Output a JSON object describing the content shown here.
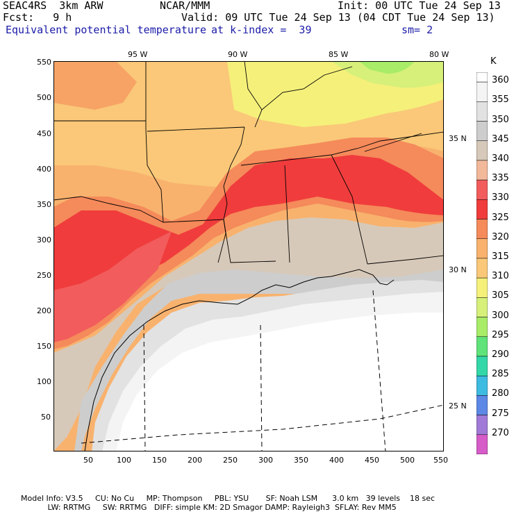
{
  "header": {
    "line1_left": "SEAC4RS  3km ARW",
    "line1_mid": "NCAR/MMM",
    "line1_right": "Init: 00 UTC Tue 24 Sep 13",
    "line2_left": "Fcst:   9 h",
    "line2_right": "Valid: 09 UTC Tue 24 Sep 13 (04 CDT Tue 24 Sep 13)",
    "field": "Equivalent potential temperature",
    "level": "at k-index =  39",
    "smoothing": "sm= 2"
  },
  "axes": {
    "x_ticks": [
      "50",
      "100",
      "150",
      "200",
      "250",
      "300",
      "350",
      "400",
      "450",
      "500",
      "550"
    ],
    "y_ticks": [
      "550",
      "500",
      "450",
      "400",
      "350",
      "300",
      "250",
      "200",
      "150",
      "100",
      "50"
    ],
    "lon_labels": [
      "95 W",
      "90 W",
      "85 W",
      "80 W"
    ],
    "lat_labels": [
      "35 N",
      "30 N",
      "25 N"
    ]
  },
  "legend": {
    "unit": "K",
    "levels": [
      {
        "value": "360",
        "color": "#f4f4f4"
      },
      {
        "value": "355",
        "color": "#e2e2e2"
      },
      {
        "value": "350",
        "color": "#cdcdcd"
      },
      {
        "value": "345",
        "color": "#d7c9b9"
      },
      {
        "value": "340",
        "color": "#f2b89a"
      },
      {
        "value": "335",
        "color": "#f25c5c"
      },
      {
        "value": "330",
        "color": "#f03c3c"
      },
      {
        "value": "325",
        "color": "#f58a5a"
      },
      {
        "value": "320",
        "color": "#f8b26e"
      },
      {
        "value": "315",
        "color": "#fac878"
      },
      {
        "value": "310",
        "color": "#f5f07a"
      },
      {
        "value": "305",
        "color": "#d6f07a"
      },
      {
        "value": "300",
        "color": "#a8ec68"
      },
      {
        "value": "295",
        "color": "#5fe37a"
      },
      {
        "value": "290",
        "color": "#34d8a8"
      },
      {
        "value": "285",
        "color": "#3ebbe0"
      },
      {
        "value": "280",
        "color": "#5e88e6"
      },
      {
        "value": "275",
        "color": "#a07ad6"
      },
      {
        "value": "270",
        "color": "#d65cc8"
      }
    ]
  },
  "footer": {
    "line1": "Model Info: V3.5     CU: No Cu     MP: Thompson     PBL: YSU       SF: Noah LSM      3.0 km   39 levels    18 sec",
    "line2": "           LW: RRTMG     SW: RRTMG   DIFF: simple KM: 2D Smagor DAMP: Rayleigh3  SFLAY: Rev MM5"
  }
}
